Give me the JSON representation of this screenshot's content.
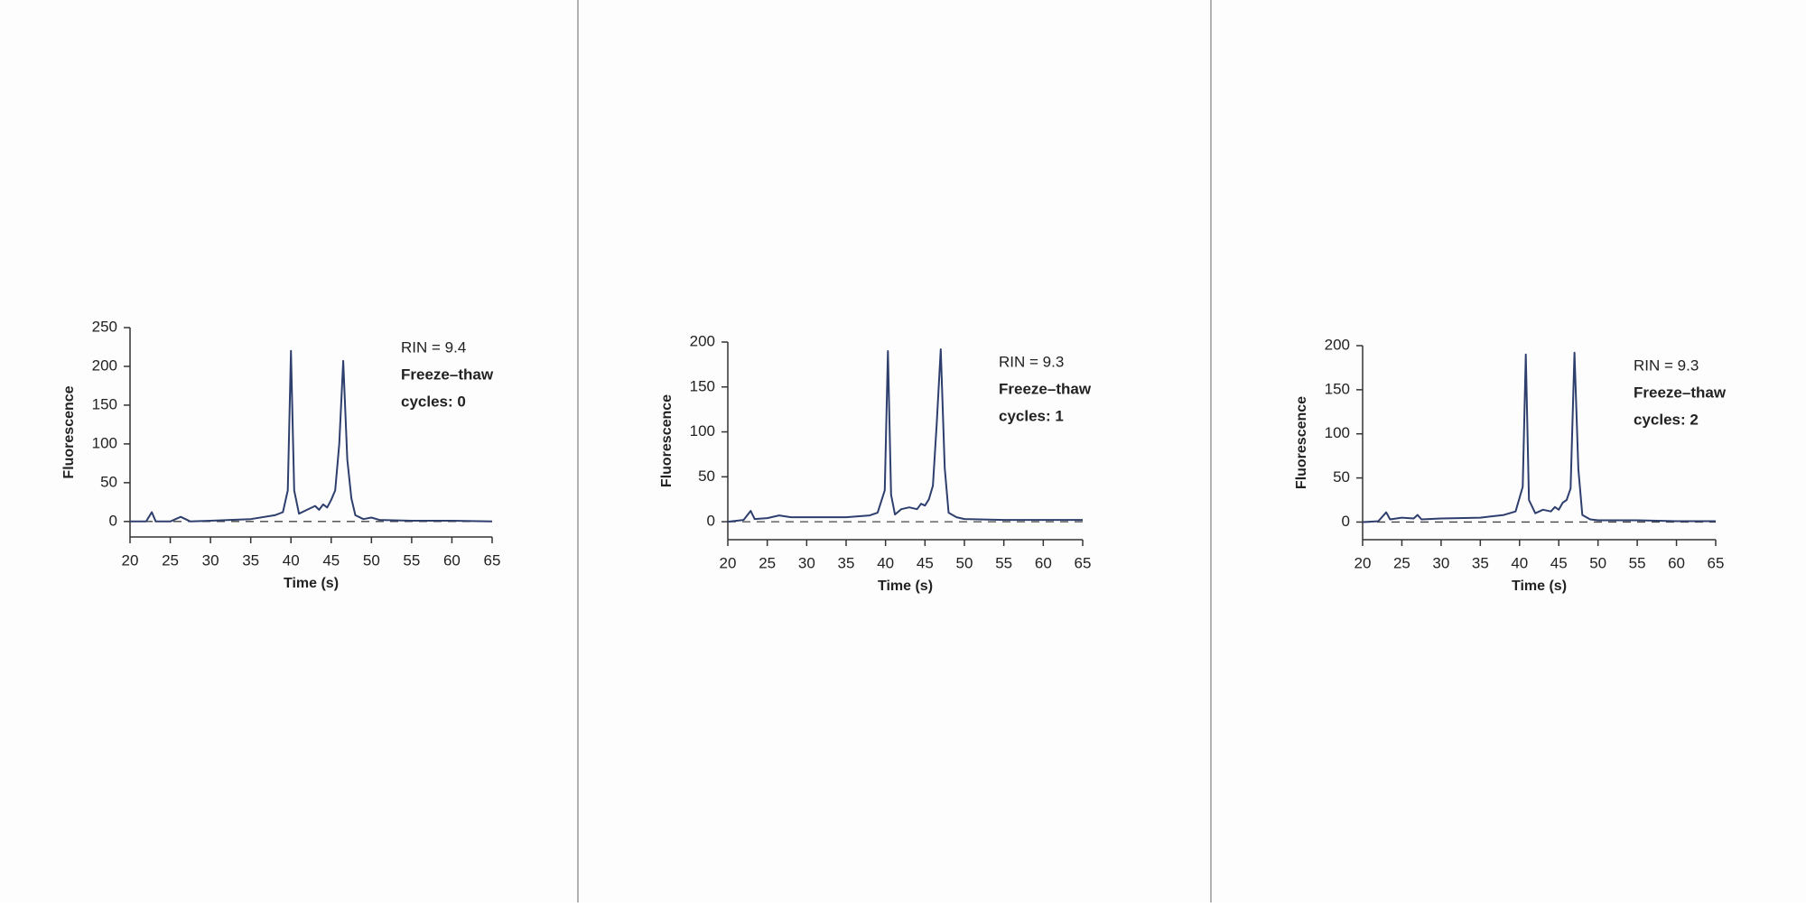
{
  "chart_data": [
    {
      "type": "line",
      "xlabel": "Time (s)",
      "ylabel": "Fluorescence",
      "color": "#2e3f6e",
      "annotations": [
        "RIN = 9.4",
        "Freeze–thaw",
        "cycles: 0"
      ],
      "xlim": [
        20,
        65
      ],
      "xticks": [
        20,
        25,
        30,
        35,
        40,
        45,
        50,
        55,
        60,
        65
      ],
      "ylim": [
        -20,
        250
      ],
      "yticks": [
        0,
        50,
        100,
        150,
        200,
        250
      ],
      "x": [
        20,
        22,
        22.7,
        23.2,
        25,
        26.3,
        27.5,
        30,
        35,
        38,
        39,
        39.6,
        40,
        40.4,
        41,
        42,
        43,
        43.5,
        44,
        44.5,
        45,
        45.5,
        46,
        46.5,
        47,
        47.5,
        48,
        49,
        50,
        51,
        55,
        60,
        65
      ],
      "values": [
        0,
        0,
        12,
        0,
        0,
        6,
        0,
        1,
        3,
        8,
        12,
        40,
        220,
        40,
        10,
        15,
        20,
        15,
        22,
        18,
        28,
        40,
        100,
        207,
        80,
        30,
        8,
        3,
        5,
        2,
        1,
        1,
        0
      ]
    },
    {
      "type": "line",
      "xlabel": "Time (s)",
      "ylabel": "Fluorescence",
      "color": "#2e3f6e",
      "annotations": [
        "RIN = 9.3",
        "Freeze–thaw",
        "cycles: 1"
      ],
      "xlim": [
        20,
        65
      ],
      "xticks": [
        20,
        25,
        30,
        35,
        40,
        45,
        50,
        55,
        60,
        65
      ],
      "ylim": [
        -20,
        200
      ],
      "yticks": [
        0,
        50,
        100,
        150,
        200
      ],
      "x": [
        20,
        22,
        22.9,
        23.4,
        25,
        26.5,
        28,
        30,
        35,
        38,
        39,
        39.9,
        40.3,
        40.7,
        41.2,
        42,
        43,
        44,
        44.5,
        45,
        45.5,
        46,
        46.5,
        47,
        47.5,
        48,
        49,
        50,
        55,
        60,
        65
      ],
      "values": [
        0,
        2,
        12,
        3,
        4,
        7,
        5,
        5,
        5,
        7,
        10,
        35,
        190,
        30,
        8,
        14,
        16,
        14,
        20,
        18,
        25,
        40,
        110,
        192,
        60,
        10,
        5,
        3,
        2,
        2,
        2
      ]
    },
    {
      "type": "line",
      "xlabel": "Time (s)",
      "ylabel": "Fluorescence",
      "color": "#2e3f6e",
      "annotations": [
        "RIN = 9.3",
        "Freeze–thaw",
        "cycles: 2"
      ],
      "xlim": [
        20,
        65
      ],
      "xticks": [
        20,
        25,
        30,
        35,
        40,
        45,
        50,
        55,
        60,
        65
      ],
      "ylim": [
        -20,
        200
      ],
      "yticks": [
        0,
        50,
        100,
        150,
        200
      ],
      "x": [
        20,
        22,
        23,
        23.5,
        25,
        26.5,
        27,
        27.5,
        30,
        35,
        38,
        39.5,
        40.4,
        40.8,
        41.2,
        42,
        43,
        44,
        44.5,
        45,
        45.5,
        46,
        46.5,
        47,
        47.5,
        48,
        49,
        50,
        55,
        60,
        65
      ],
      "values": [
        0,
        1,
        11,
        3,
        5,
        4,
        8,
        3,
        4,
        5,
        8,
        12,
        40,
        190,
        25,
        10,
        14,
        12,
        17,
        14,
        22,
        25,
        38,
        192,
        60,
        8,
        3,
        2,
        2,
        1,
        1
      ]
    }
  ]
}
